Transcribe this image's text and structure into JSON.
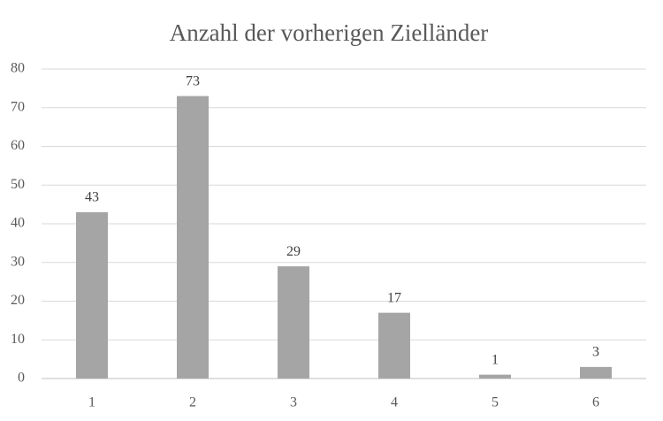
{
  "chart_data": {
    "type": "bar",
    "title": "Anzahl der vorherigen Zielländer",
    "categories": [
      "1",
      "2",
      "3",
      "4",
      "5",
      "6"
    ],
    "values": [
      43,
      73,
      29,
      17,
      1,
      3
    ],
    "color": "#a5a5a5",
    "ylim": [
      0,
      80
    ],
    "yticks": [
      0,
      10,
      20,
      30,
      40,
      50,
      60,
      70,
      80
    ],
    "grid": true
  }
}
